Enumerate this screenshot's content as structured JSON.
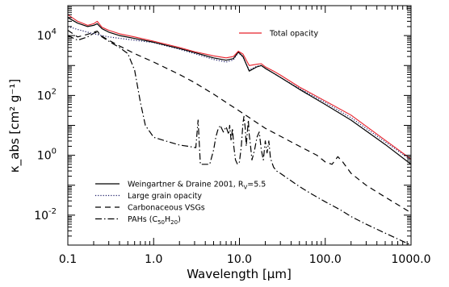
{
  "chart_data": {
    "type": "line",
    "xlabel": "Wavelength [μm]",
    "ylabel": "κ_abs [cm² g⁻¹]",
    "xscale": "log",
    "yscale": "log",
    "xlim": [
      0.1,
      1000
    ],
    "ylim": [
      0.001,
      100000
    ],
    "x_ticks": [
      {
        "value": 0.1,
        "label": "0.1"
      },
      {
        "value": 1,
        "label": "1.0"
      },
      {
        "value": 10,
        "label": "10.0"
      },
      {
        "value": 100,
        "label": "100.0"
      },
      {
        "value": 1000,
        "label": "1000.0"
      }
    ],
    "y_ticks": [
      {
        "value": 0.01,
        "base": "10",
        "exp": "-2"
      },
      {
        "value": 1,
        "base": "10",
        "exp": "0"
      },
      {
        "value": 100,
        "base": "10",
        "exp": "2"
      },
      {
        "value": 10000,
        "base": "10",
        "exp": "4"
      }
    ],
    "legends": [
      {
        "placement": "top-right",
        "entries": [
          {
            "series": "total",
            "text": "Total opacity",
            "color": "#e8202a",
            "dash": "solid"
          }
        ]
      },
      {
        "placement": "bottom-left",
        "entries": [
          {
            "series": "wd01",
            "text": "Weingartner & Draine 2001, R",
            "sub": "V",
            "after": "=5.5",
            "color": "#000000",
            "dash": "solid"
          },
          {
            "series": "large",
            "text": "Large grain opacity",
            "color": "#1a1a66",
            "dash": "dotted"
          },
          {
            "series": "vsg",
            "text": "Carbonaceous VSGs",
            "color": "#000000",
            "dash": "dashed"
          },
          {
            "series": "pah",
            "text": "PAHs (C",
            "sub": "50",
            "mid": "H",
            "sub2": "20",
            "after": ")",
            "color": "#000000",
            "dash": "dashdot"
          }
        ]
      }
    ],
    "series": [
      {
        "id": "wd01",
        "x": [
          0.1,
          0.13,
          0.17,
          0.2,
          0.22,
          0.25,
          0.3,
          0.4,
          0.6,
          1,
          2,
          3,
          5,
          7,
          8.5,
          9.7,
          11,
          13,
          16,
          18,
          20,
          25,
          30,
          50,
          100,
          200,
          500,
          1000
        ],
        "y": [
          40000,
          26000,
          20000,
          22000,
          25000,
          17000,
          13000,
          10000,
          8000,
          6000,
          3700,
          2700,
          1800,
          1500,
          1700,
          2800,
          2000,
          650,
          900,
          1000,
          800,
          550,
          400,
          160,
          50,
          15,
          2.3,
          0.5
        ]
      },
      {
        "id": "total",
        "x": [
          0.1,
          0.13,
          0.17,
          0.2,
          0.22,
          0.25,
          0.3,
          0.4,
          0.6,
          1,
          2,
          3,
          5,
          7,
          8.5,
          9.7,
          11,
          13,
          16,
          18,
          20,
          25,
          30,
          50,
          100,
          200,
          500,
          1000
        ],
        "y": [
          50000,
          30000,
          22000,
          25000,
          30000,
          19000,
          15000,
          11500,
          9000,
          6500,
          4000,
          2900,
          2100,
          1800,
          2000,
          3000,
          2400,
          1000,
          1100,
          1150,
          900,
          650,
          480,
          190,
          65,
          22,
          3.2,
          0.75
        ]
      },
      {
        "id": "large",
        "x": [
          0.1,
          0.13,
          0.17,
          0.2,
          0.25,
          0.3,
          0.5,
          1,
          2,
          3,
          5,
          7,
          8.5,
          9.7,
          11,
          13,
          16,
          18,
          20,
          25,
          30,
          50,
          100,
          200,
          500,
          1000
        ],
        "y": [
          20000,
          16000,
          13000,
          11500,
          10000,
          9000,
          7500,
          5800,
          3500,
          2500,
          1600,
          1300,
          1550,
          2700,
          1900,
          700,
          950,
          1000,
          800,
          550,
          400,
          170,
          58,
          18,
          2.8,
          0.7
        ]
      },
      {
        "id": "vsg",
        "x": [
          0.1,
          0.13,
          0.17,
          0.2,
          0.22,
          0.25,
          0.3,
          0.4,
          0.6,
          1,
          2,
          3,
          5,
          10,
          20,
          50,
          80,
          100,
          120,
          140,
          160,
          200,
          300,
          500,
          1000
        ],
        "y": [
          15000,
          9000,
          11000,
          13000,
          14000,
          9500,
          7000,
          4500,
          2500,
          1300,
          500,
          270,
          110,
          30,
          8,
          2,
          1,
          0.6,
          0.5,
          0.9,
          0.6,
          0.25,
          0.1,
          0.04,
          0.012
        ]
      },
      {
        "id": "pah",
        "x": [
          0.1,
          0.13,
          0.17,
          0.2,
          0.22,
          0.25,
          0.3,
          0.35,
          0.4,
          0.5,
          0.6,
          0.7,
          0.8,
          1,
          1.5,
          2,
          2.5,
          3.1,
          3.3,
          3.5,
          4.5,
          5,
          5.3,
          5.6,
          6,
          6.2,
          6.5,
          7,
          7.5,
          7.7,
          8,
          8.3,
          8.6,
          9,
          9.5,
          10,
          10.5,
          11,
          11.3,
          11.7,
          12,
          12.7,
          13,
          13.5,
          14,
          15,
          16,
          17,
          17.5,
          18,
          19,
          20,
          21,
          22,
          23,
          25,
          27,
          30,
          40,
          50,
          70,
          100,
          150,
          200,
          300,
          500,
          700,
          1000
        ],
        "y": [
          10000,
          7000,
          9000,
          12000,
          13000,
          9000,
          6500,
          5000,
          4000,
          2500,
          700,
          60,
          10,
          4,
          2.8,
          2.2,
          2,
          1.8,
          15,
          0.5,
          0.5,
          1.5,
          4,
          7,
          10,
          8,
          6,
          9,
          5,
          10,
          3,
          8,
          2,
          0.7,
          0.5,
          0.6,
          2,
          12,
          20,
          8,
          2,
          15,
          5,
          2,
          0.7,
          1.5,
          4,
          6,
          3,
          1.5,
          0.7,
          3,
          1.2,
          3,
          0.8,
          0.4,
          0.3,
          0.25,
          0.14,
          0.09,
          0.05,
          0.028,
          0.015,
          0.009,
          0.005,
          0.0025,
          0.0016,
          0.001
        ]
      }
    ]
  }
}
